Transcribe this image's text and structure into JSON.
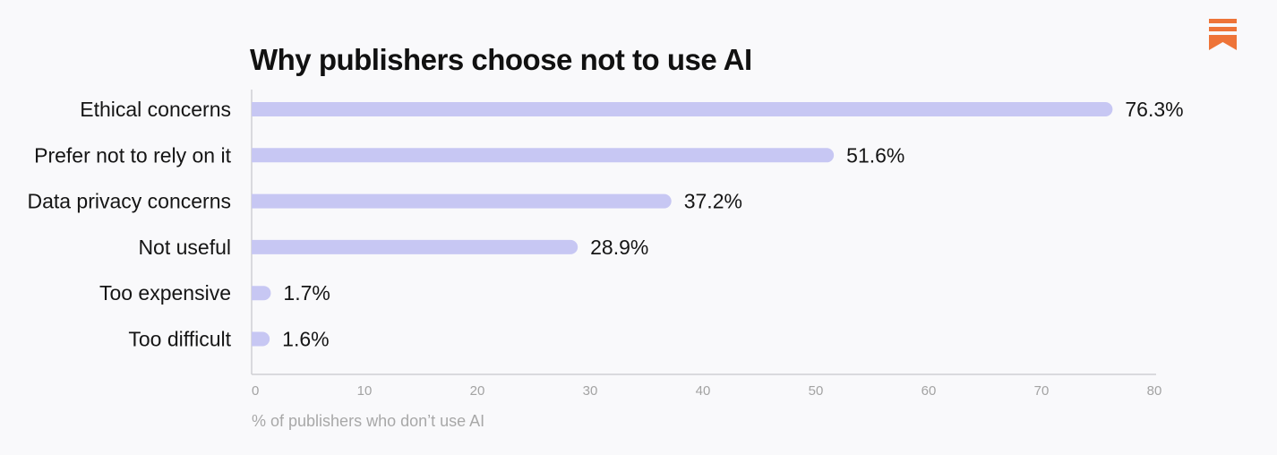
{
  "brand": {
    "logo_icon": "substack-bookmark-icon",
    "color": "#ee7438"
  },
  "colors": {
    "bar": "#c7c7f3",
    "axis": "#cfcfd4",
    "background": "#f9f9fb"
  },
  "chart_data": {
    "type": "bar",
    "orientation": "horizontal",
    "title": "Why publishers choose not to use AI",
    "categories": [
      "Ethical concerns",
      "Prefer not to rely on it",
      "Data privacy concerns",
      "Not useful",
      "Too expensive",
      "Too difficult"
    ],
    "values": [
      76.3,
      51.6,
      37.2,
      28.9,
      1.7,
      1.6
    ],
    "value_labels": [
      "76.3%",
      "51.6%",
      "37.2%",
      "28.9%",
      "1.7%",
      "1.6%"
    ],
    "xlabel": "% of publishers who don’t use AI",
    "ylabel": "",
    "xlim": [
      0,
      80
    ],
    "xticks": [
      "0",
      "10",
      "20",
      "30",
      "40",
      "50",
      "60",
      "70",
      "80"
    ],
    "grid": false,
    "legend": "none"
  }
}
